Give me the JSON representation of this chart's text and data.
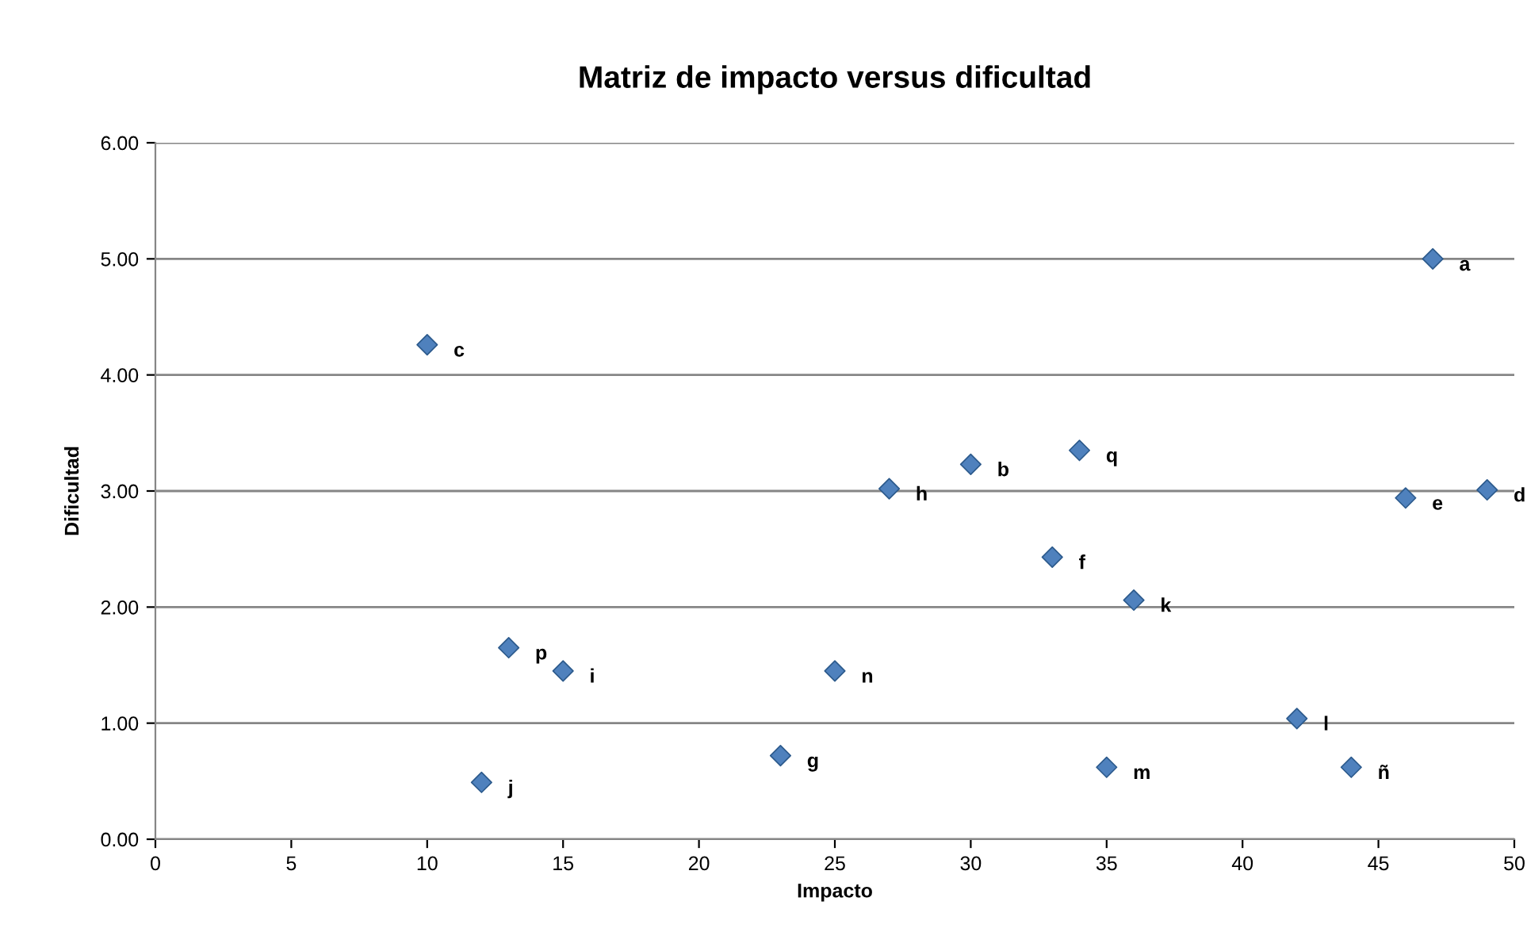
{
  "chart_data": {
    "type": "scatter",
    "title": "Matriz de impacto versus dificultad",
    "xlabel": "Impacto",
    "ylabel": "Dificultad",
    "x": [
      47,
      30,
      10,
      49,
      46,
      33,
      23,
      27,
      15,
      12,
      36,
      42,
      35,
      25,
      44,
      13,
      34
    ],
    "series": [
      {
        "color": "#4f81bd",
        "values": [
          5.0,
          3.23,
          4.26,
          3.01,
          2.94,
          2.43,
          0.72,
          3.02,
          1.45,
          0.49,
          2.06,
          1.04,
          0.62,
          1.45,
          0.62,
          1.65,
          3.35
        ]
      }
    ],
    "annotations": [
      {
        "text": "a",
        "x": 47,
        "y": 5.0
      },
      {
        "text": "b",
        "x": 30,
        "y": 3.23
      },
      {
        "text": "c",
        "x": 10,
        "y": 4.26
      },
      {
        "text": "d",
        "x": 49,
        "y": 3.01
      },
      {
        "text": "e",
        "x": 46,
        "y": 2.94
      },
      {
        "text": "f",
        "x": 33,
        "y": 2.43
      },
      {
        "text": "g",
        "x": 23,
        "y": 0.72
      },
      {
        "text": "h",
        "x": 27,
        "y": 3.02
      },
      {
        "text": "i",
        "x": 15,
        "y": 1.45
      },
      {
        "text": "j",
        "x": 12,
        "y": 0.49
      },
      {
        "text": "k",
        "x": 36,
        "y": 2.06
      },
      {
        "text": "l",
        "x": 42,
        "y": 1.04
      },
      {
        "text": "m",
        "x": 35,
        "y": 0.62
      },
      {
        "text": "n",
        "x": 25,
        "y": 1.45
      },
      {
        "text": "ñ",
        "x": 44,
        "y": 0.62
      },
      {
        "text": "p",
        "x": 13,
        "y": 1.65
      },
      {
        "text": "q",
        "x": 34,
        "y": 3.35
      }
    ],
    "xlim": [
      0,
      50
    ],
    "xticks": [
      0,
      5,
      10,
      15,
      20,
      25,
      30,
      35,
      40,
      45,
      50
    ],
    "ylim": [
      0,
      6
    ],
    "yticks": [
      {
        "value": 0,
        "label": "0.00"
      },
      {
        "value": 1,
        "label": "1.00"
      },
      {
        "value": 2,
        "label": "2.00"
      },
      {
        "value": 3,
        "label": "3.00"
      },
      {
        "value": 4,
        "label": "4.00"
      },
      {
        "value": 5,
        "label": "5.00"
      },
      {
        "value": 6,
        "label": "6.00"
      }
    ],
    "grid": "y",
    "marker": "diamond"
  }
}
